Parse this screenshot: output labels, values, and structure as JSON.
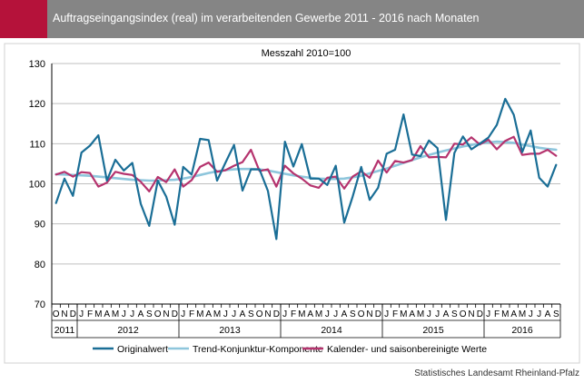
{
  "header": {
    "title": "Auftragseingangsindex (real) im verarbeitenden Gewerbe 2011 - 2016 nach Monaten",
    "accent_color": "#b5123a",
    "bar_color": "#858585"
  },
  "source": "Statistisches Landesamt Rheinland-Pfalz",
  "chart_data": {
    "type": "line",
    "subtitle": "Messzahl 2010=100",
    "ylim": [
      70,
      130
    ],
    "yticks": [
      70,
      80,
      90,
      100,
      110,
      120,
      130
    ],
    "grid": true,
    "legend_position": "bottom",
    "month_labels": [
      "O",
      "N",
      "D",
      "J",
      "F",
      "M",
      "A",
      "M",
      "J",
      "J",
      "A",
      "S",
      "O",
      "N",
      "D",
      "J",
      "F",
      "M",
      "A",
      "M",
      "J",
      "J",
      "A",
      "S",
      "O",
      "N",
      "D",
      "J",
      "F",
      "M",
      "A",
      "M",
      "J",
      "J",
      "A",
      "S",
      "O",
      "N",
      "D",
      "J",
      "F",
      "M",
      "A",
      "M",
      "J",
      "J",
      "A",
      "S",
      "O",
      "N",
      "D",
      "J",
      "F",
      "M",
      "A",
      "M",
      "J",
      "J",
      "A",
      "S"
    ],
    "years": [
      {
        "label": "2011",
        "months": 3
      },
      {
        "label": "2012",
        "months": 12
      },
      {
        "label": "2013",
        "months": 12
      },
      {
        "label": "2014",
        "months": 12
      },
      {
        "label": "2015",
        "months": 12
      },
      {
        "label": "2016",
        "months": 9
      }
    ],
    "series": [
      {
        "name": "Originalwert",
        "color": "#1a6e96",
        "values": [
          95.2,
          101.3,
          97.0,
          107.8,
          109.5,
          112.1,
          100.8,
          106.0,
          103.3,
          105.2,
          95.0,
          89.5,
          100.8,
          96.8,
          89.8,
          104.2,
          102.3,
          111.2,
          110.9,
          100.8,
          105.3,
          109.7,
          98.3,
          103.6,
          103.6,
          98.2,
          86.2,
          110.5,
          104.3,
          109.9,
          101.3,
          101.3,
          99.7,
          104.5,
          90.3,
          96.8,
          104.2,
          96.0,
          99.0,
          107.5,
          108.5,
          117.3,
          107.3,
          106.9,
          110.8,
          108.9,
          91.0,
          107.7,
          111.8,
          108.6,
          110.0,
          111.5,
          114.7,
          121.2,
          117.2,
          107.9,
          113.3,
          101.5,
          99.3,
          104.7
        ]
      },
      {
        "name": "Trend-Konjunktur-Komponente",
        "color": "#8ec6dc",
        "values": [
          102.4,
          102.3,
          102.2,
          102.1,
          102.0,
          101.8,
          101.6,
          101.4,
          101.2,
          101.0,
          100.9,
          100.8,
          100.8,
          100.9,
          101.0,
          101.3,
          101.7,
          102.2,
          102.7,
          103.1,
          103.4,
          103.6,
          103.7,
          103.7,
          103.6,
          103.3,
          102.9,
          102.5,
          102.1,
          101.8,
          101.5,
          101.3,
          101.2,
          101.2,
          101.3,
          101.6,
          102.0,
          102.6,
          103.2,
          103.8,
          104.5,
          105.2,
          105.9,
          106.6,
          107.2,
          107.8,
          108.3,
          108.8,
          109.3,
          109.7,
          110.1,
          110.3,
          110.5,
          110.4,
          110.2,
          109.8,
          109.4,
          109.0,
          108.7,
          108.5
        ]
      },
      {
        "name": "Kalender- und saisonbereinigte Werte",
        "color": "#b5336e",
        "values": [
          102.3,
          103.0,
          101.8,
          102.9,
          102.7,
          99.3,
          100.3,
          103.0,
          102.5,
          102.2,
          100.5,
          98.1,
          101.7,
          100.4,
          103.6,
          99.3,
          100.9,
          104.2,
          105.3,
          103.0,
          103.4,
          104.5,
          105.4,
          108.5,
          103.2,
          103.6,
          99.3,
          104.5,
          102.6,
          101.3,
          99.6,
          99.0,
          101.5,
          101.8,
          98.8,
          101.8,
          103.1,
          101.5,
          105.8,
          102.8,
          105.7,
          105.3,
          105.9,
          109.4,
          106.6,
          106.7,
          106.6,
          110.0,
          109.8,
          111.6,
          109.8,
          111.0,
          108.6,
          110.7,
          111.7,
          107.2,
          107.5,
          107.5,
          108.5,
          107.0
        ]
      }
    ]
  }
}
